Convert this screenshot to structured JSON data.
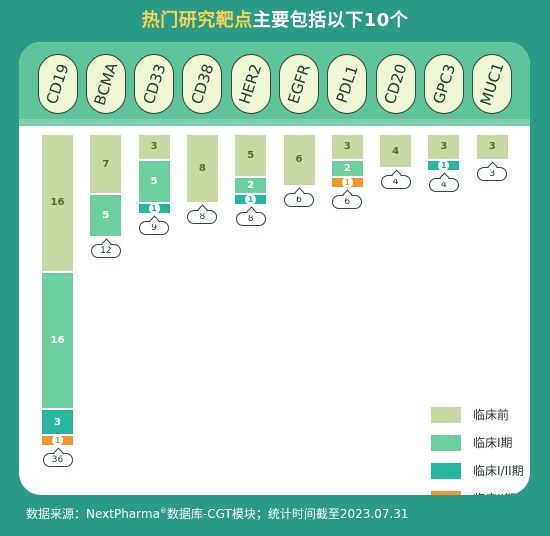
{
  "title": {
    "highlight": "热门研究靶点",
    "rest": "主要包括以下10个"
  },
  "chart_data": {
    "type": "bar",
    "stacked": true,
    "categories": [
      "CD19",
      "BCMA",
      "CD33",
      "CD38",
      "HER2",
      "EGFR",
      "PDL1",
      "CD20",
      "GPC3",
      "MUC1"
    ],
    "series": [
      {
        "name": "临床前",
        "color": "#c8d8a2",
        "values": [
          16,
          7,
          3,
          8,
          5,
          6,
          3,
          4,
          3,
          3
        ]
      },
      {
        "name": "临床I期",
        "color": "#6ccf9f",
        "values": [
          16,
          5,
          5,
          0,
          2,
          0,
          2,
          0,
          0,
          0
        ]
      },
      {
        "name": "临床I/II期",
        "color": "#27b69c",
        "values": [
          3,
          0,
          1,
          0,
          1,
          0,
          0,
          0,
          1,
          0
        ]
      },
      {
        "name": "临床II期",
        "color": "#f4962e",
        "values": [
          1,
          0,
          0,
          0,
          0,
          0,
          1,
          0,
          0,
          0
        ]
      }
    ],
    "totals": [
      36,
      12,
      9,
      8,
      8,
      6,
      6,
      4,
      4,
      3
    ],
    "legend_position": "right"
  },
  "footer": {
    "prefix": "数据来源：NextPharma",
    "reg": "®",
    "suffix": "数据库-CGT模块；统计时间截至2023.07.31"
  }
}
